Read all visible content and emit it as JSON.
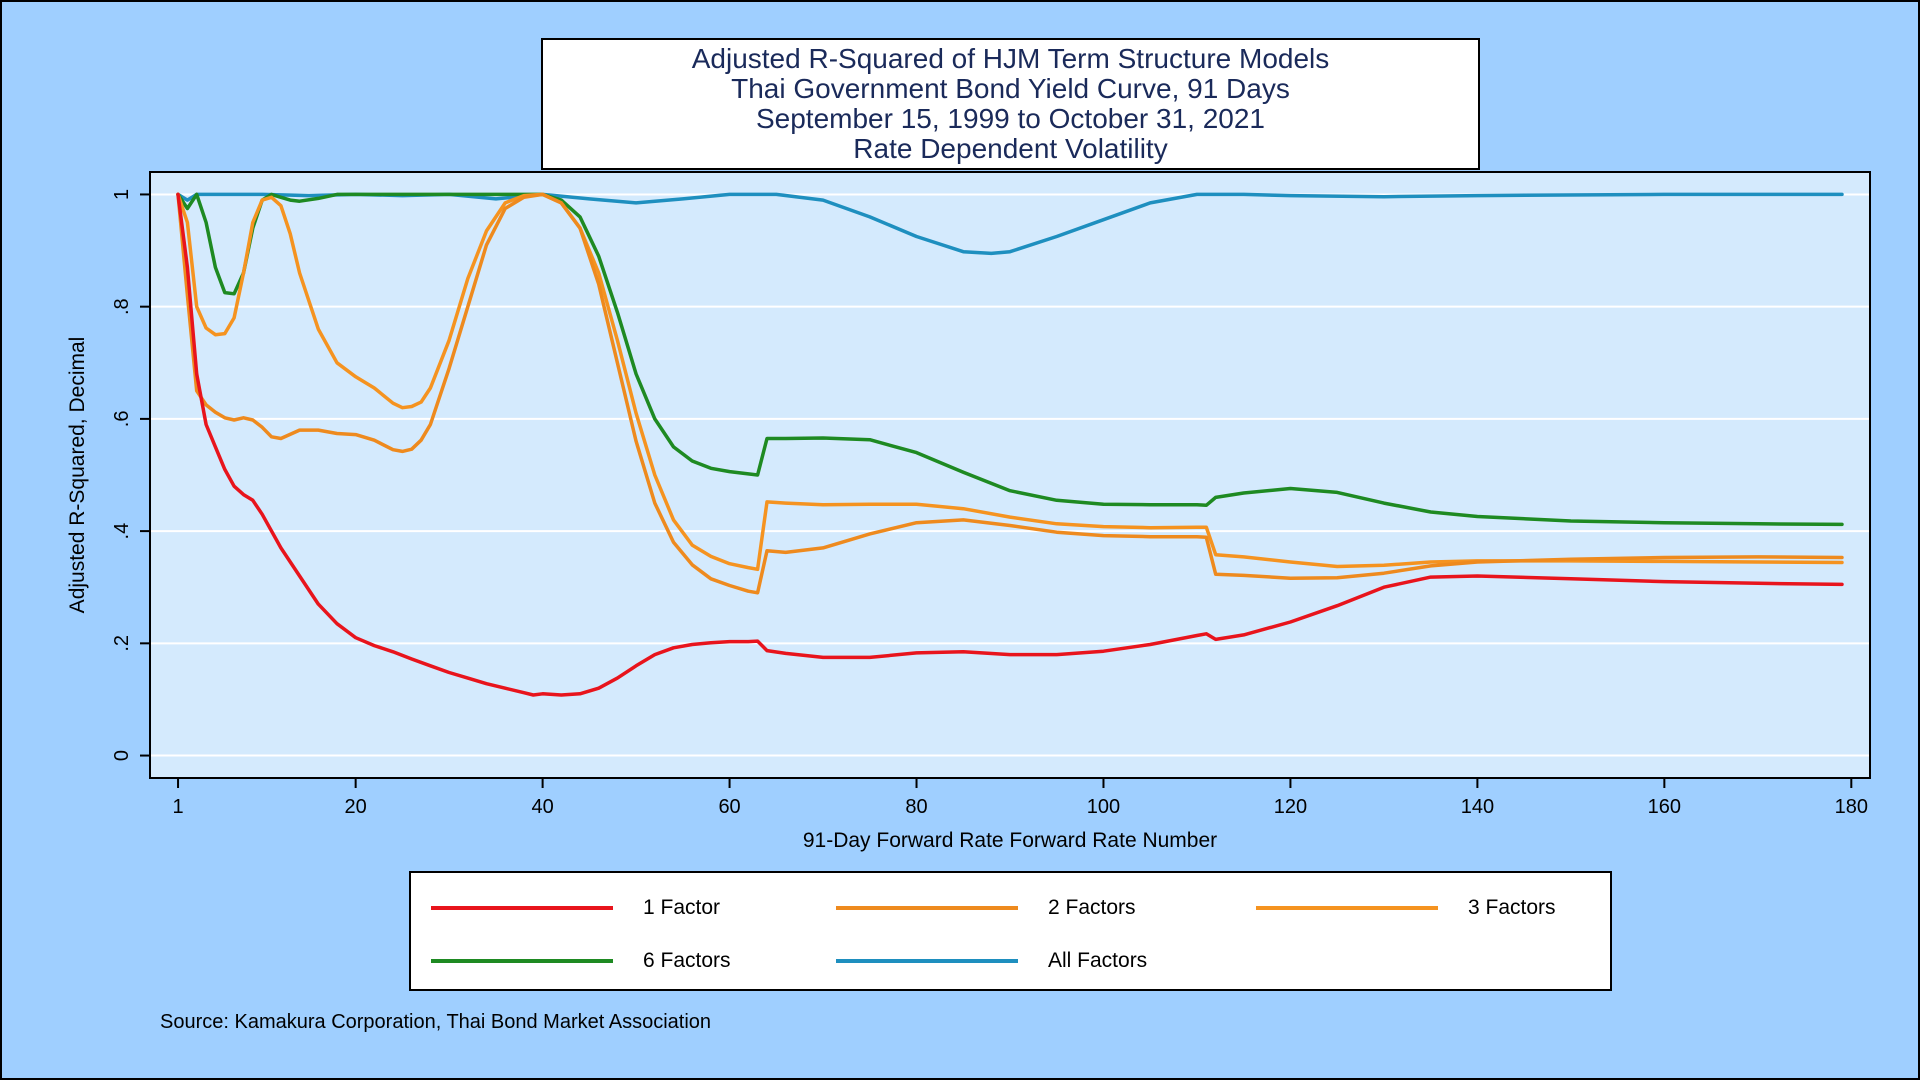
{
  "chart_data": {
    "type": "line",
    "title": [
      "Adjusted R-Squared of HJM Term Structure Models",
      "Thai Government Bond Yield Curve, 91 Days",
      "September 15, 1999 to October 31, 2021",
      "Rate Dependent Volatility"
    ],
    "xlabel": "91-Day Forward Rate Forward Rate Number",
    "ylabel": "Adjusted R-Squared, Decimal",
    "xlim": [
      -2,
      182
    ],
    "ylim": [
      -0.04,
      1.04
    ],
    "xticks": [
      1,
      20,
      40,
      60,
      80,
      100,
      120,
      140,
      160,
      180
    ],
    "xtick_labels": [
      "1",
      "20",
      "40",
      "60",
      "80",
      "100",
      "120",
      "140",
      "160",
      "180"
    ],
    "yticks": [
      0,
      0.2,
      0.4,
      0.6,
      0.8,
      1
    ],
    "ytick_labels": [
      "0",
      ".2",
      ".4",
      ".6",
      ".8",
      "1"
    ],
    "grid": true,
    "legend_position": "bottom",
    "source": "Source: Kamakura Corporation, Thai Bond Market Association",
    "series": [
      {
        "name": "1 Factor",
        "color": "#e8141c",
        "x": [
          1,
          2,
          3,
          4,
          5,
          6,
          7,
          8,
          9,
          10,
          12,
          14,
          16,
          18,
          20,
          22,
          24,
          26,
          28,
          30,
          32,
          34,
          36,
          38,
          39,
          40,
          42,
          44,
          46,
          48,
          50,
          52,
          54,
          56,
          58,
          60,
          62,
          63,
          64,
          66,
          70,
          75,
          80,
          85,
          90,
          95,
          100,
          105,
          110,
          111,
          112,
          115,
          120,
          125,
          130,
          135,
          140,
          150,
          160,
          170,
          179
        ],
        "y": [
          1.0,
          0.87,
          0.68,
          0.59,
          0.55,
          0.51,
          0.48,
          0.465,
          0.455,
          0.43,
          0.37,
          0.32,
          0.27,
          0.235,
          0.21,
          0.196,
          0.185,
          0.172,
          0.16,
          0.148,
          0.138,
          0.128,
          0.12,
          0.112,
          0.108,
          0.11,
          0.108,
          0.11,
          0.12,
          0.138,
          0.16,
          0.18,
          0.192,
          0.198,
          0.201,
          0.203,
          0.203,
          0.204,
          0.187,
          0.182,
          0.175,
          0.175,
          0.183,
          0.185,
          0.18,
          0.18,
          0.186,
          0.198,
          0.214,
          0.217,
          0.207,
          0.215,
          0.238,
          0.267,
          0.3,
          0.318,
          0.32,
          0.315,
          0.31,
          0.307,
          0.305
        ]
      },
      {
        "name": "2 Factors",
        "color": "#ee8a1e",
        "x": [
          1,
          2,
          3,
          4,
          5,
          6,
          7,
          8,
          9,
          10,
          11,
          12,
          14,
          16,
          18,
          20,
          22,
          24,
          25,
          26,
          27,
          28,
          30,
          32,
          34,
          36,
          38,
          40,
          42,
          44,
          46,
          48,
          50,
          52,
          54,
          56,
          58,
          60,
          62,
          63,
          64,
          66,
          70,
          75,
          80,
          85,
          90,
          95,
          100,
          105,
          110,
          111,
          112,
          115,
          120,
          125,
          130,
          135,
          140,
          150,
          160,
          170,
          179
        ],
        "y": [
          1.0,
          0.82,
          0.65,
          0.625,
          0.612,
          0.602,
          0.598,
          0.602,
          0.598,
          0.585,
          0.568,
          0.565,
          0.58,
          0.58,
          0.574,
          0.572,
          0.562,
          0.545,
          0.542,
          0.546,
          0.562,
          0.59,
          0.69,
          0.8,
          0.91,
          0.975,
          0.995,
          1.0,
          0.985,
          0.94,
          0.84,
          0.7,
          0.56,
          0.45,
          0.38,
          0.34,
          0.315,
          0.303,
          0.293,
          0.29,
          0.365,
          0.362,
          0.37,
          0.395,
          0.415,
          0.42,
          0.41,
          0.398,
          0.392,
          0.39,
          0.39,
          0.389,
          0.323,
          0.321,
          0.316,
          0.317,
          0.325,
          0.338,
          0.345,
          0.35,
          0.353,
          0.354,
          0.353
        ]
      },
      {
        "name": "3 Factors",
        "color": "#f59320",
        "x": [
          1,
          2,
          3,
          4,
          5,
          6,
          7,
          8,
          9,
          10,
          11,
          12,
          13,
          14,
          16,
          18,
          20,
          22,
          24,
          25,
          26,
          27,
          28,
          30,
          32,
          34,
          36,
          38,
          40,
          42,
          44,
          46,
          48,
          50,
          52,
          54,
          56,
          58,
          60,
          62,
          63,
          64,
          66,
          70,
          75,
          80,
          85,
          90,
          95,
          100,
          105,
          110,
          111,
          112,
          115,
          120,
          125,
          130,
          135,
          140,
          150,
          160,
          170,
          179
        ],
        "y": [
          1.0,
          0.95,
          0.8,
          0.762,
          0.75,
          0.752,
          0.78,
          0.86,
          0.95,
          0.99,
          0.995,
          0.98,
          0.93,
          0.86,
          0.76,
          0.7,
          0.675,
          0.655,
          0.628,
          0.62,
          0.622,
          0.63,
          0.655,
          0.74,
          0.85,
          0.935,
          0.985,
          0.998,
          1.0,
          0.985,
          0.94,
          0.86,
          0.74,
          0.61,
          0.5,
          0.42,
          0.375,
          0.355,
          0.342,
          0.335,
          0.332,
          0.452,
          0.45,
          0.447,
          0.448,
          0.448,
          0.44,
          0.425,
          0.413,
          0.408,
          0.406,
          0.407,
          0.407,
          0.358,
          0.354,
          0.345,
          0.337,
          0.339,
          0.345,
          0.347,
          0.347,
          0.346,
          0.345,
          0.344
        ]
      },
      {
        "name": "6 Factors",
        "color": "#1e8a22",
        "x": [
          1,
          2,
          3,
          4,
          5,
          6,
          7,
          8,
          9,
          10,
          11,
          12,
          13,
          14,
          16,
          18,
          20,
          25,
          30,
          35,
          40,
          42,
          44,
          46,
          48,
          50,
          52,
          54,
          56,
          58,
          60,
          62,
          63,
          64,
          66,
          70,
          75,
          80,
          85,
          90,
          95,
          100,
          105,
          110,
          111,
          112,
          115,
          120,
          125,
          130,
          135,
          140,
          150,
          160,
          170,
          179
        ],
        "y": [
          1.0,
          0.975,
          1.0,
          0.95,
          0.87,
          0.825,
          0.823,
          0.86,
          0.94,
          0.99,
          1.0,
          0.995,
          0.99,
          0.988,
          0.993,
          1.0,
          1.0,
          1.0,
          1.0,
          1.0,
          1.0,
          0.99,
          0.96,
          0.89,
          0.79,
          0.68,
          0.6,
          0.55,
          0.525,
          0.512,
          0.506,
          0.502,
          0.5,
          0.565,
          0.565,
          0.566,
          0.563,
          0.54,
          0.505,
          0.472,
          0.455,
          0.448,
          0.447,
          0.447,
          0.446,
          0.46,
          0.468,
          0.476,
          0.469,
          0.45,
          0.434,
          0.426,
          0.418,
          0.415,
          0.413,
          0.412
        ]
      },
      {
        "name": "All Factors",
        "color": "#1e8fbf",
        "x": [
          1,
          2,
          3,
          4,
          6,
          10,
          15,
          20,
          25,
          30,
          35,
          40,
          45,
          50,
          55,
          60,
          65,
          70,
          75,
          80,
          85,
          88,
          90,
          95,
          100,
          105,
          110,
          115,
          120,
          130,
          140,
          160,
          179
        ],
        "y": [
          1.0,
          0.99,
          1.0,
          1.0,
          1.0,
          1.0,
          0.998,
          1.0,
          0.998,
          1.0,
          0.992,
          1.0,
          0.992,
          0.985,
          0.992,
          1.0,
          1.0,
          0.99,
          0.96,
          0.925,
          0.898,
          0.895,
          0.898,
          0.925,
          0.955,
          0.985,
          1.0,
          1.0,
          0.998,
          0.996,
          0.998,
          1.0,
          1.0
        ]
      }
    ]
  }
}
